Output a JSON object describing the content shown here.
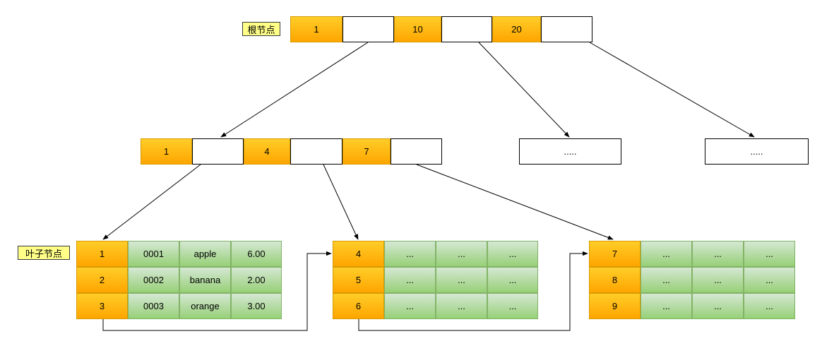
{
  "labels": {
    "root": "根节点",
    "leaf": "叶子节点"
  },
  "root_keys": [
    "1",
    "10",
    "20"
  ],
  "internal_keys": [
    "1",
    "4",
    "7"
  ],
  "placeholder_nodes": [
    ".....",
    "....."
  ],
  "leaf_rows": [
    [
      "1",
      "0001",
      "apple",
      "6.00"
    ],
    [
      "2",
      "0002",
      "banana",
      "2.00"
    ],
    [
      "3",
      "0003",
      "orange",
      "3.00"
    ],
    [
      "4",
      "...",
      "...",
      "..."
    ],
    [
      "5",
      "...",
      "...",
      "..."
    ],
    [
      "6",
      "...",
      "...",
      "..."
    ],
    [
      "7",
      "...",
      "...",
      "..."
    ],
    [
      "8",
      "...",
      "...",
      "..."
    ],
    [
      "9",
      "...",
      "...",
      "..."
    ]
  ],
  "colors": {
    "key_fill": "#ffb814",
    "data_fill": "#b5db9e",
    "tag_fill": "#ffff88"
  }
}
